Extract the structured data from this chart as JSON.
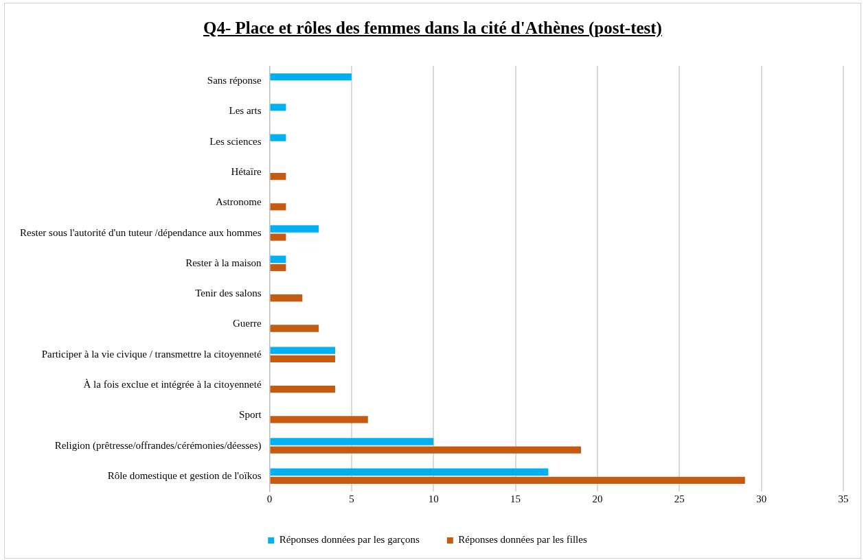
{
  "chart_data": {
    "type": "bar",
    "orientation": "horizontal",
    "title": "Q4- Place et rôles des femmes dans la cité d'Athènes (post-test)",
    "categories": [
      "Sans réponse",
      "Les arts",
      "Les sciences",
      "Hétaïre",
      "Astronome",
      "Rester sous l'autorité d'un tuteur /dépendance aux hommes",
      "Rester à la maison",
      "Tenir des salons",
      "Guerre",
      "Participer à la vie civique / transmettre la citoyenneté",
      "À la fois exclue et intégrée à la citoyenneté",
      "Sport",
      "Religion (prêtresse/offrandes/cérémonies/déesses)",
      "Rôle domestique et gestion de l'oïkos"
    ],
    "series": [
      {
        "name": "Réponses données par les garçons",
        "color": "#00b0f0",
        "values": [
          5,
          1,
          1,
          null,
          null,
          3,
          1,
          null,
          null,
          4,
          null,
          null,
          10,
          17
        ]
      },
      {
        "name": "Réponses données par les filles",
        "color": "#c55a11",
        "values": [
          null,
          null,
          null,
          1,
          1,
          1,
          1,
          2,
          3,
          4,
          4,
          6,
          19,
          29
        ]
      }
    ],
    "xlim": [
      0,
      35
    ],
    "xticks": [
      0,
      5,
      10,
      15,
      20,
      25,
      30,
      35
    ],
    "grid": "x",
    "legend": "bottom"
  }
}
